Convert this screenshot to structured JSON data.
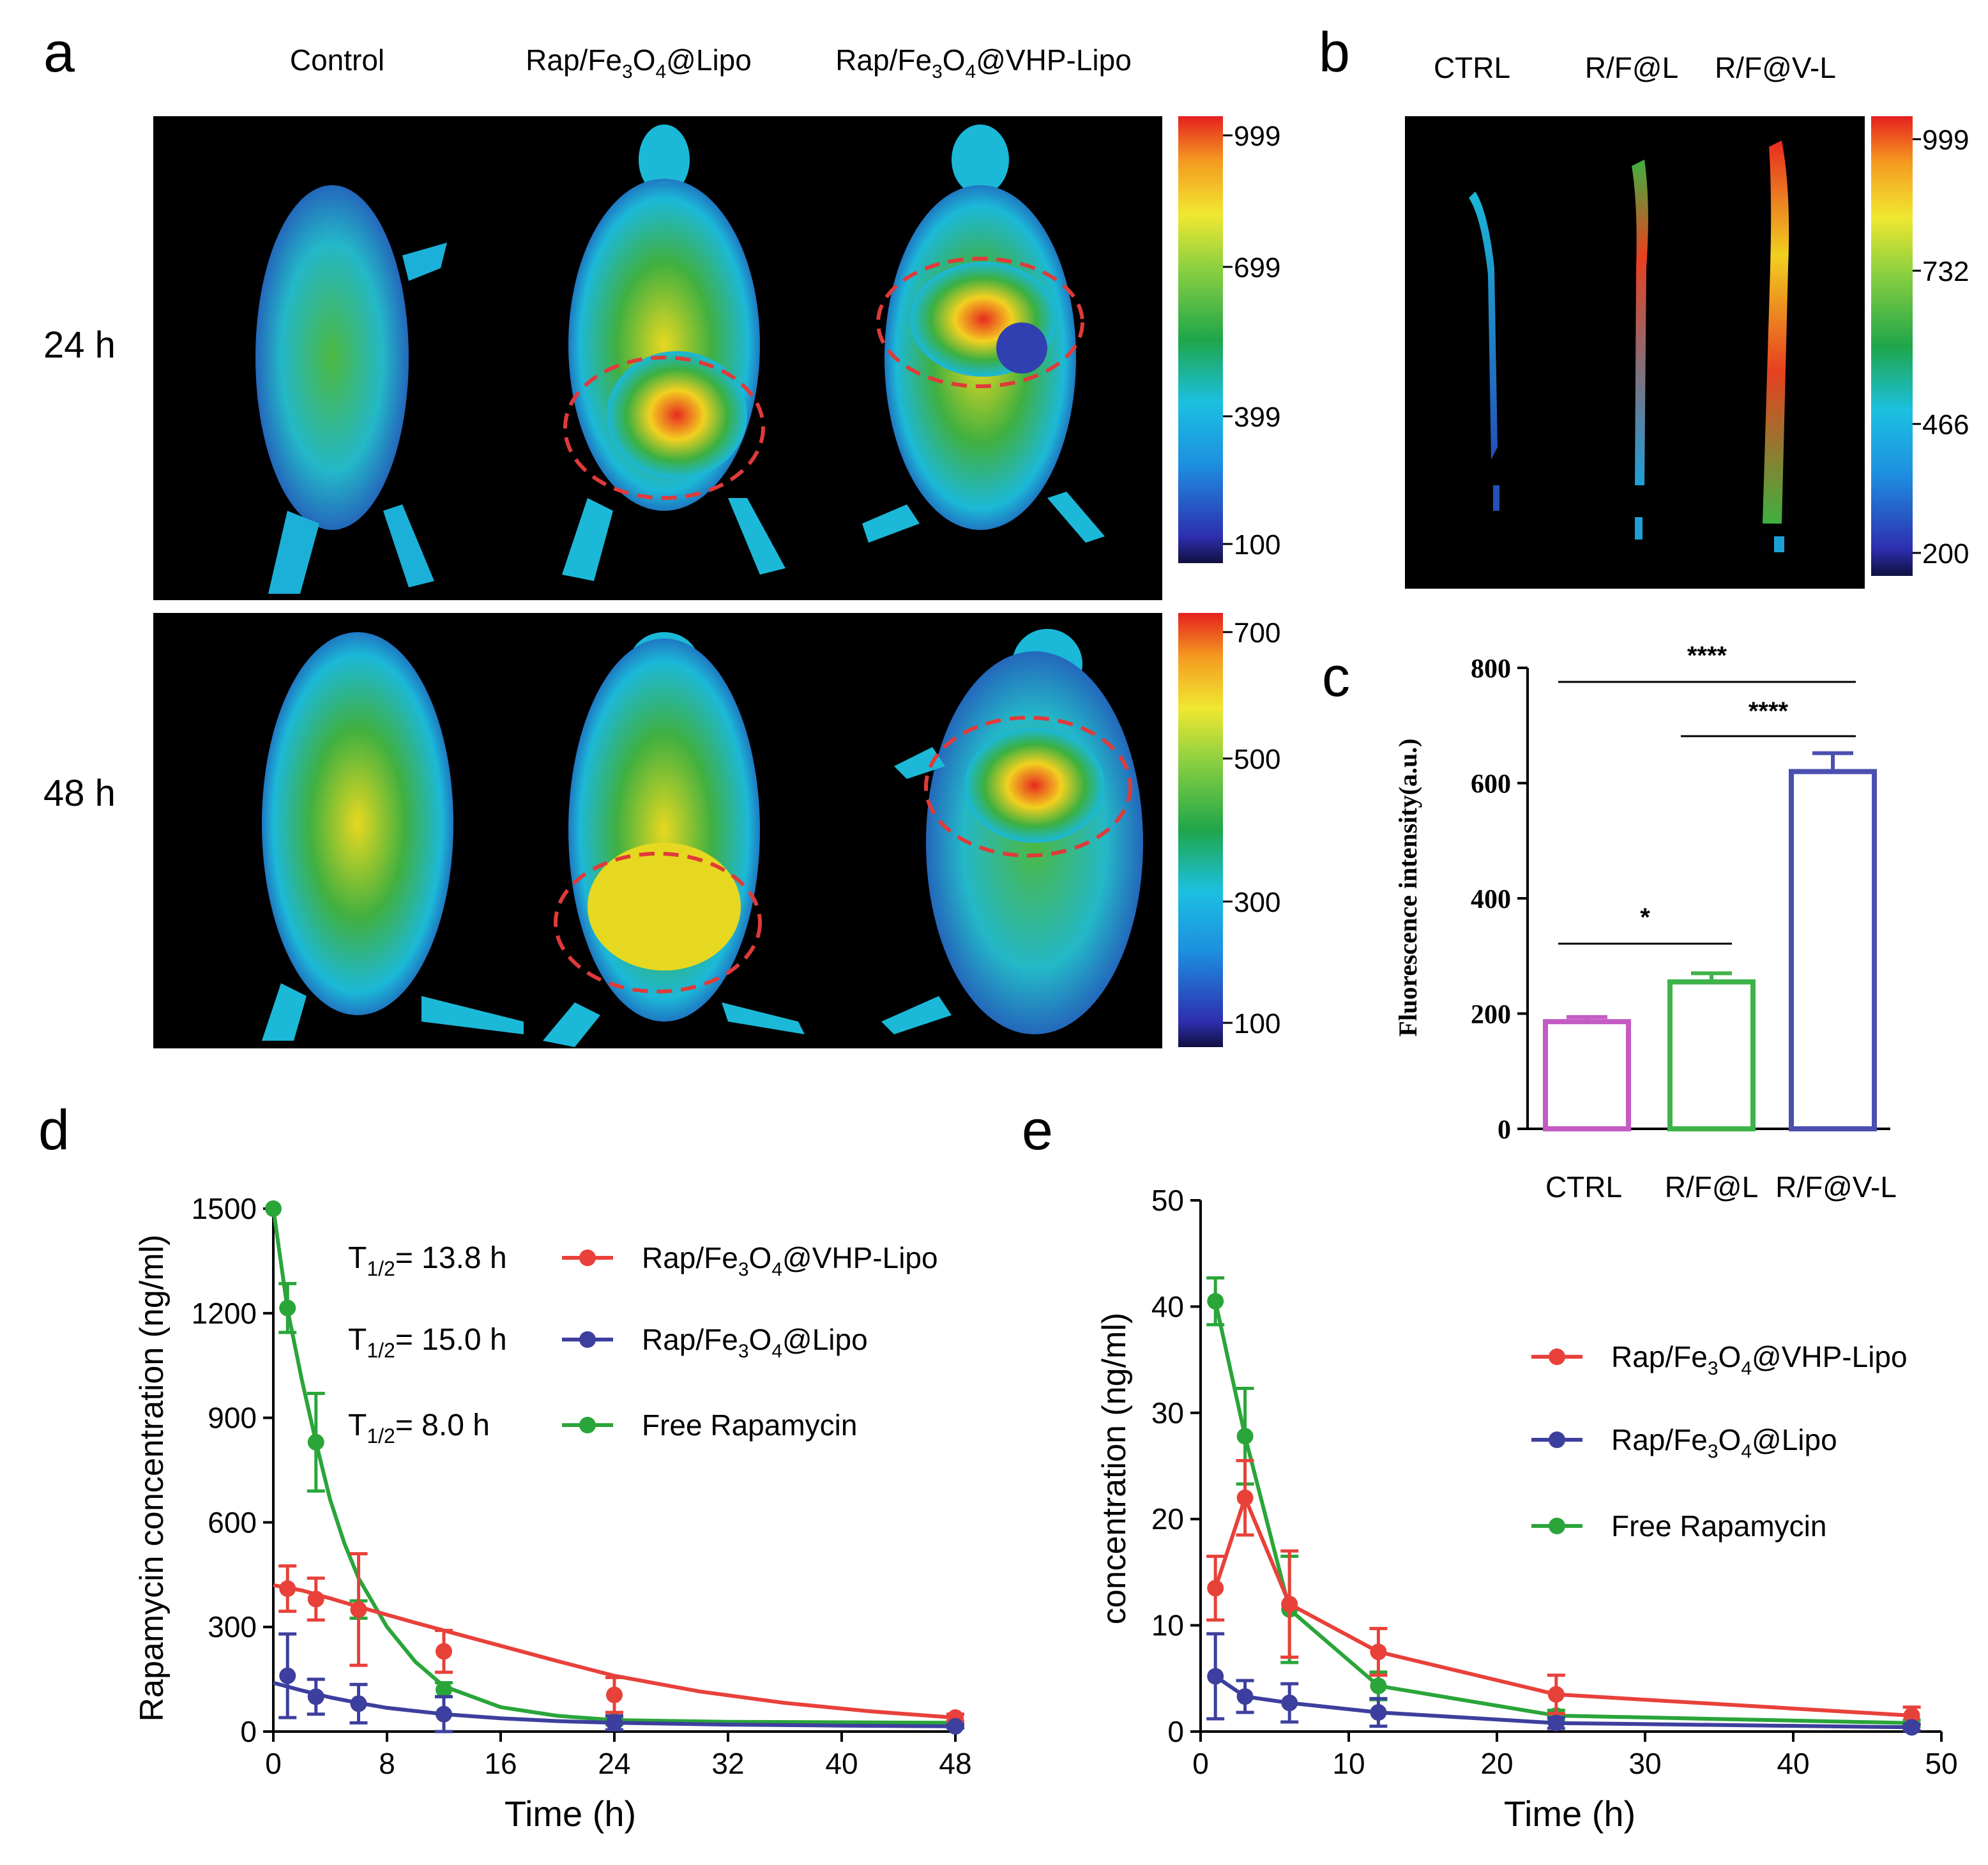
{
  "panels": {
    "a": {
      "letter": "a",
      "columns": [
        "Control",
        "Rap/Fe",
        "3",
        "O",
        "4",
        "@Lipo",
        "@VHP-Lipo"
      ],
      "col_labels": [
        {
          "parts": [
            "Control"
          ]
        },
        {
          "parts": [
            "Rap/Fe",
            "3",
            "O",
            "4",
            "@Lipo"
          ]
        },
        {
          "parts": [
            "Rap/Fe",
            "3",
            "O",
            "4",
            "@VHP-Lipo"
          ]
        }
      ],
      "rows": [
        "24 h",
        "48 h"
      ],
      "colorbar_24h": [
        "999",
        "699",
        "399",
        "100"
      ],
      "colorbar_48h": [
        "700",
        "500",
        "300",
        "100"
      ]
    },
    "b": {
      "letter": "b",
      "columns": [
        "CTRL",
        "R/F@L",
        "R/F@V-L"
      ],
      "colorbar": [
        "999",
        "732",
        "466",
        "200"
      ]
    },
    "c": {
      "letter": "c"
    },
    "d": {
      "letter": "d"
    },
    "e": {
      "letter": "e"
    }
  },
  "colors": {
    "red": "#e8413a",
    "blue": "#3d3f9e",
    "green": "#2aa53a",
    "magenta": "#c45bc4",
    "bar_green": "#3fb34a",
    "bar_blue": "#4b4fb0"
  },
  "chart_data": [
    {
      "id": "c",
      "type": "bar",
      "categories": [
        "CTRL",
        "R/F@L",
        "R/F@V-L"
      ],
      "values": [
        186,
        255,
        620
      ],
      "errors": [
        8,
        15,
        32
      ],
      "ylabel": "Fluorescence intensity(a.u.)",
      "ylim": [
        0,
        800
      ],
      "yticks": [
        "0",
        "200",
        "400",
        "600",
        "800"
      ],
      "significance": [
        {
          "from": "CTRL",
          "to": "R/F@L",
          "label": "*"
        },
        {
          "from": "R/F@L",
          "to": "R/F@V-L",
          "label": "****"
        },
        {
          "from": "CTRL",
          "to": "R/F@V-L",
          "label": "****"
        }
      ]
    },
    {
      "id": "d",
      "type": "line",
      "xlabel": "Time (h)",
      "ylabel": "Rapamycin concentration (ng/ml)",
      "xlim": [
        0,
        48
      ],
      "ylim": [
        0,
        1500
      ],
      "xticks": [
        "0",
        "8",
        "16",
        "24",
        "32",
        "40",
        "48"
      ],
      "yticks": [
        "0",
        "300",
        "600",
        "900",
        "1200",
        "1500"
      ],
      "half_lives": [
        "13.8 h",
        "15.0 h",
        "8.0 h"
      ],
      "series": [
        {
          "name": "Rap/Fe3O4@VHP-Lipo",
          "legend": [
            "Rap/Fe",
            "3",
            "O",
            "4",
            "@VHP-Lipo"
          ],
          "x": [
            1,
            3,
            6,
            12,
            24,
            48
          ],
          "y": [
            410,
            380,
            350,
            230,
            105,
            40
          ],
          "err": [
            65,
            60,
            160,
            60,
            50,
            10
          ],
          "curve": [
            [
              0,
              420
            ],
            [
              2,
              405
            ],
            [
              4,
              382
            ],
            [
              6,
              358
            ],
            [
              8,
              335
            ],
            [
              10,
              312
            ],
            [
              12,
              290
            ],
            [
              16,
              246
            ],
            [
              20,
              202
            ],
            [
              24,
              160
            ],
            [
              30,
              115
            ],
            [
              36,
              82
            ],
            [
              42,
              58
            ],
            [
              48,
              40
            ]
          ]
        },
        {
          "name": "Rap/Fe3O4@Lipo",
          "legend": [
            "Rap/Fe",
            "3",
            "O",
            "4",
            "@Lipo"
          ],
          "x": [
            1,
            3,
            6,
            12,
            24,
            48
          ],
          "y": [
            160,
            100,
            80,
            50,
            25,
            15
          ],
          "err": [
            120,
            50,
            55,
            50,
            20,
            5
          ],
          "curve": [
            [
              0,
              140
            ],
            [
              2,
              118
            ],
            [
              4,
              98
            ],
            [
              6,
              82
            ],
            [
              8,
              68
            ],
            [
              12,
              50
            ],
            [
              16,
              38
            ],
            [
              20,
              30
            ],
            [
              24,
              25
            ],
            [
              32,
              20
            ],
            [
              40,
              17
            ],
            [
              48,
              15
            ]
          ]
        },
        {
          "name": "Free Rapamycin",
          "legend": [
            "Free Rapamycin"
          ],
          "x": [
            0,
            1,
            3,
            6,
            12,
            24,
            48
          ],
          "y": [
            1500,
            1215,
            830,
            350,
            120,
            30,
            25
          ],
          "err": [
            0,
            70,
            140,
            25,
            20,
            10,
            5
          ],
          "curve": [
            [
              0,
              1500
            ],
            [
              1,
              1210
            ],
            [
              2,
              1010
            ],
            [
              3,
              830
            ],
            [
              4,
              665
            ],
            [
              5,
              540
            ],
            [
              6,
              440
            ],
            [
              8,
              300
            ],
            [
              10,
              200
            ],
            [
              12,
              130
            ],
            [
              16,
              70
            ],
            [
              20,
              45
            ],
            [
              24,
              33
            ],
            [
              32,
              28
            ],
            [
              48,
              25
            ]
          ]
        }
      ]
    },
    {
      "id": "e",
      "type": "line",
      "xlabel": "Time (h)",
      "ylabel": "concentration (ng/ml)",
      "xlim": [
        0,
        50
      ],
      "ylim": [
        0,
        50
      ],
      "xticks": [
        "0",
        "10",
        "20",
        "30",
        "40",
        "50"
      ],
      "yticks": [
        "0",
        "10",
        "20",
        "30",
        "40",
        "50"
      ],
      "series": [
        {
          "name": "Rap/Fe3O4@VHP-Lipo",
          "legend": [
            "Rap/Fe",
            "3",
            "O",
            "4",
            "@VHP-Lipo"
          ],
          "x": [
            1,
            3,
            6,
            12,
            24,
            48
          ],
          "y": [
            13.5,
            22,
            12,
            7.5,
            3.5,
            1.5
          ],
          "err": [
            3,
            3.5,
            5,
            2.2,
            1.8,
            0.8
          ],
          "curve": [
            [
              1,
              13.5
            ],
            [
              3,
              22
            ],
            [
              6,
              12
            ],
            [
              12,
              7.5
            ],
            [
              24,
              3.5
            ],
            [
              48,
              1.5
            ]
          ]
        },
        {
          "name": "Rap/Fe3O4@Lipo",
          "legend": [
            "Rap/Fe",
            "3",
            "O",
            "4",
            "@Lipo"
          ],
          "x": [
            1,
            3,
            6,
            12,
            24,
            48
          ],
          "y": [
            5.2,
            3.3,
            2.7,
            1.8,
            0.8,
            0.4
          ],
          "err": [
            4,
            1.5,
            1.8,
            1.3,
            0.5,
            0.3
          ],
          "curve": [
            [
              1,
              5.2
            ],
            [
              3,
              3.3
            ],
            [
              6,
              2.7
            ],
            [
              12,
              1.8
            ],
            [
              24,
              0.8
            ],
            [
              48,
              0.4
            ]
          ]
        },
        {
          "name": "Free Rapamycin",
          "legend": [
            "Free Rapamycin"
          ],
          "x": [
            1,
            3,
            6,
            12,
            24,
            48
          ],
          "y": [
            40.5,
            27.8,
            11.5,
            4.3,
            1.5,
            0.8
          ],
          "err": [
            2.2,
            4.5,
            5,
            1.3,
            0.5,
            0.3
          ],
          "curve": [
            [
              1,
              40.5
            ],
            [
              3,
              27.8
            ],
            [
              6,
              11.5
            ],
            [
              12,
              4.3
            ],
            [
              24,
              1.5
            ],
            [
              48,
              0.8
            ]
          ]
        }
      ]
    }
  ]
}
